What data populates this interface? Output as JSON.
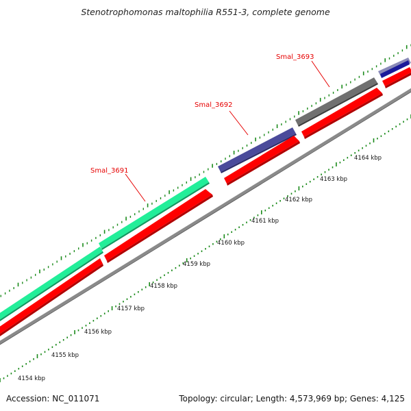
{
  "title": "Stenotrophomonas maltophilia R551-3, complete genome",
  "accession_text": "Accession: NC_011071",
  "topology_text": "Topology: circular; Length: 4,573,969 bp; Genes: 4,125",
  "colors": {
    "backbone": "#888888",
    "cds": "#ff0000",
    "gene_green": "#22ee99",
    "gene_purple": "#4b4b9b",
    "gene_gray": "#707070",
    "gene_navy": "#1a1a9a",
    "ticks": "#1a8a1a",
    "label_red": "#e60000"
  },
  "scale_labels": [
    "4154 kbp",
    "4155 kbp",
    "4156 kbp",
    "4157 kbp",
    "4158 kbp",
    "4159 kbp",
    "4160 kbp",
    "4161 kbp",
    "4162 kbp",
    "4163 kbp",
    "4164 kbp"
  ],
  "gene_labels": [
    {
      "text": "Smal_3691"
    },
    {
      "text": "Smal_3692"
    },
    {
      "text": "Smal_3693"
    }
  ]
}
